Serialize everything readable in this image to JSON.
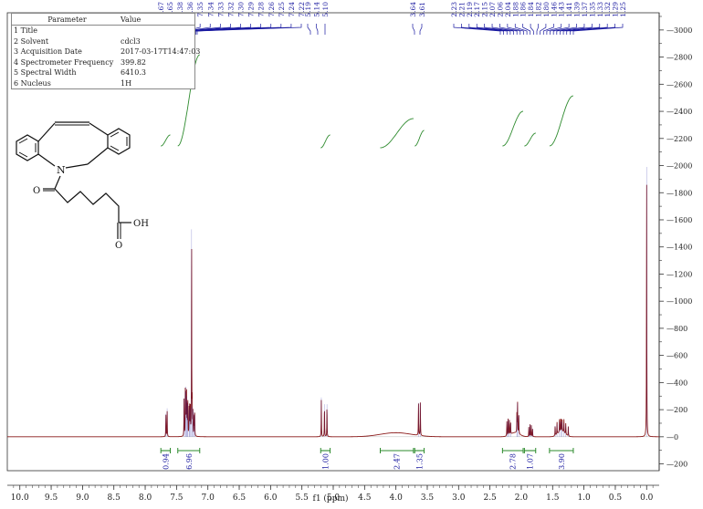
{
  "params": {
    "header_param": "Parameter",
    "header_value": "Value",
    "rows": [
      {
        "n": "1",
        "name": "Title",
        "value": ""
      },
      {
        "n": "2",
        "name": "Solvent",
        "value": "cdcl3"
      },
      {
        "n": "3",
        "name": "Acquisition Date",
        "value": "2017-03-17T14:47:03"
      },
      {
        "n": "4",
        "name": "Spectrometer Frequency",
        "value": "399.82"
      },
      {
        "n": "5",
        "name": "Spectral Width",
        "value": "6410.3"
      },
      {
        "n": "6",
        "name": "Nucleus",
        "value": "1H"
      }
    ]
  },
  "molecule": {
    "oh_label": "OH",
    "n_label": "N",
    "o_label": "O"
  },
  "colors": {
    "spectrum": "#8b1a1a",
    "integral": "#2e8b2e",
    "peak_labels": "#1a1aa0",
    "axes": "#333333"
  },
  "chart_data": {
    "type": "line",
    "xlabel": "f1 (ppm)",
    "ylabel": "",
    "x_reversed": true,
    "xlim": [
      10.2,
      -0.2
    ],
    "ylim": [
      -250,
      3100
    ],
    "x_ticks": [
      "10.0",
      "9.5",
      "9.0",
      "8.5",
      "8.0",
      "7.5",
      "7.0",
      "6.5",
      "6.0",
      "5.5",
      "5.0",
      "4.5",
      "4.0",
      "3.5",
      "3.0",
      "2.5",
      "2.0",
      "1.5",
      "1.0",
      "0.5",
      "0.0"
    ],
    "y_ticks": [
      "-200",
      "0",
      "200",
      "400",
      "600",
      "800",
      "1000",
      "1200",
      "1400",
      "1600",
      "1800",
      "2000",
      "2200",
      "2400",
      "2600",
      "2800",
      "3000"
    ],
    "peaks": [
      {
        "ppm": 7.67,
        "h": 170
      },
      {
        "ppm": 7.65,
        "h": 210
      },
      {
        "ppm": 7.38,
        "h": 280
      },
      {
        "ppm": 7.36,
        "h": 330
      },
      {
        "ppm": 7.35,
        "h": 370
      },
      {
        "ppm": 7.34,
        "h": 300
      },
      {
        "ppm": 7.33,
        "h": 260
      },
      {
        "ppm": 7.32,
        "h": 240
      },
      {
        "ppm": 7.3,
        "h": 200
      },
      {
        "ppm": 7.29,
        "h": 230
      },
      {
        "ppm": 7.28,
        "h": 210
      },
      {
        "ppm": 7.26,
        "h": 1530
      },
      {
        "ppm": 7.25,
        "h": 220
      },
      {
        "ppm": 7.24,
        "h": 200
      },
      {
        "ppm": 7.22,
        "h": 180
      },
      {
        "ppm": 7.21,
        "h": 160
      },
      {
        "ppm": 5.19,
        "h": 290
      },
      {
        "ppm": 5.14,
        "h": 240
      },
      {
        "ppm": 5.1,
        "h": 240
      },
      {
        "ppm": 3.64,
        "h": 250
      },
      {
        "ppm": 3.61,
        "h": 250
      },
      {
        "ppm": 2.23,
        "h": 110
      },
      {
        "ppm": 2.21,
        "h": 130
      },
      {
        "ppm": 2.19,
        "h": 120
      },
      {
        "ppm": 2.17,
        "h": 100
      },
      {
        "ppm": 2.07,
        "h": 150
      },
      {
        "ppm": 2.06,
        "h": 250
      },
      {
        "ppm": 2.04,
        "h": 160
      },
      {
        "ppm": 1.88,
        "h": 70
      },
      {
        "ppm": 1.86,
        "h": 90
      },
      {
        "ppm": 1.84,
        "h": 85
      },
      {
        "ppm": 1.82,
        "h": 60
      },
      {
        "ppm": 1.46,
        "h": 80
      },
      {
        "ppm": 1.43,
        "h": 95
      },
      {
        "ppm": 1.39,
        "h": 110
      },
      {
        "ppm": 1.37,
        "h": 115
      },
      {
        "ppm": 1.35,
        "h": 110
      },
      {
        "ppm": 1.32,
        "h": 100
      },
      {
        "ppm": 1.29,
        "h": 85
      },
      {
        "ppm": 1.25,
        "h": 70
      },
      {
        "ppm": 0.0,
        "h": 1990
      }
    ],
    "humps": [
      {
        "ppm": 4.0,
        "h": 30,
        "w": 0.35
      },
      {
        "ppm": 1.36,
        "h": 40,
        "w": 0.08
      },
      {
        "ppm": 2.1,
        "h": 30,
        "w": 0.1
      }
    ],
    "peak_labels": {
      "group1": [
        "7.67",
        "7.65"
      ],
      "group2": [
        "7.38",
        "7.36",
        "7.35",
        "7.34",
        "7.33",
        "7.32",
        "7.30",
        "7.29",
        "7.28",
        "7.26",
        "7.25",
        "7.24",
        "7.22"
      ],
      "group3": [
        "5.19",
        "5.14",
        "5.10"
      ],
      "group4": [
        "3.64",
        "3.61"
      ],
      "group5": [
        "2.23",
        "2.21",
        "2.19",
        "2.17",
        "2.15",
        "2.07",
        "2.06",
        "2.04",
        "1.88",
        "1.86",
        "1.84",
        "1.82",
        "1.80",
        "1.46",
        "1.43",
        "1.41",
        "1.39",
        "1.37",
        "1.35",
        "1.33",
        "1.32",
        "1.29",
        "1.25"
      ]
    },
    "integrals": [
      {
        "from": 7.75,
        "to": 7.6,
        "value": "0.94"
      },
      {
        "from": 7.48,
        "to": 7.13,
        "value": "6.96"
      },
      {
        "from": 5.2,
        "to": 5.05,
        "value": "1.00"
      },
      {
        "from": 4.25,
        "to": 3.72,
        "value": "2.47"
      },
      {
        "from": 3.7,
        "to": 3.55,
        "value": "1.35"
      },
      {
        "from": 2.3,
        "to": 1.97,
        "value": "2.78"
      },
      {
        "from": 1.95,
        "to": 1.77,
        "value": "1.07"
      },
      {
        "from": 1.55,
        "to": 1.17,
        "value": "3.90"
      }
    ]
  }
}
